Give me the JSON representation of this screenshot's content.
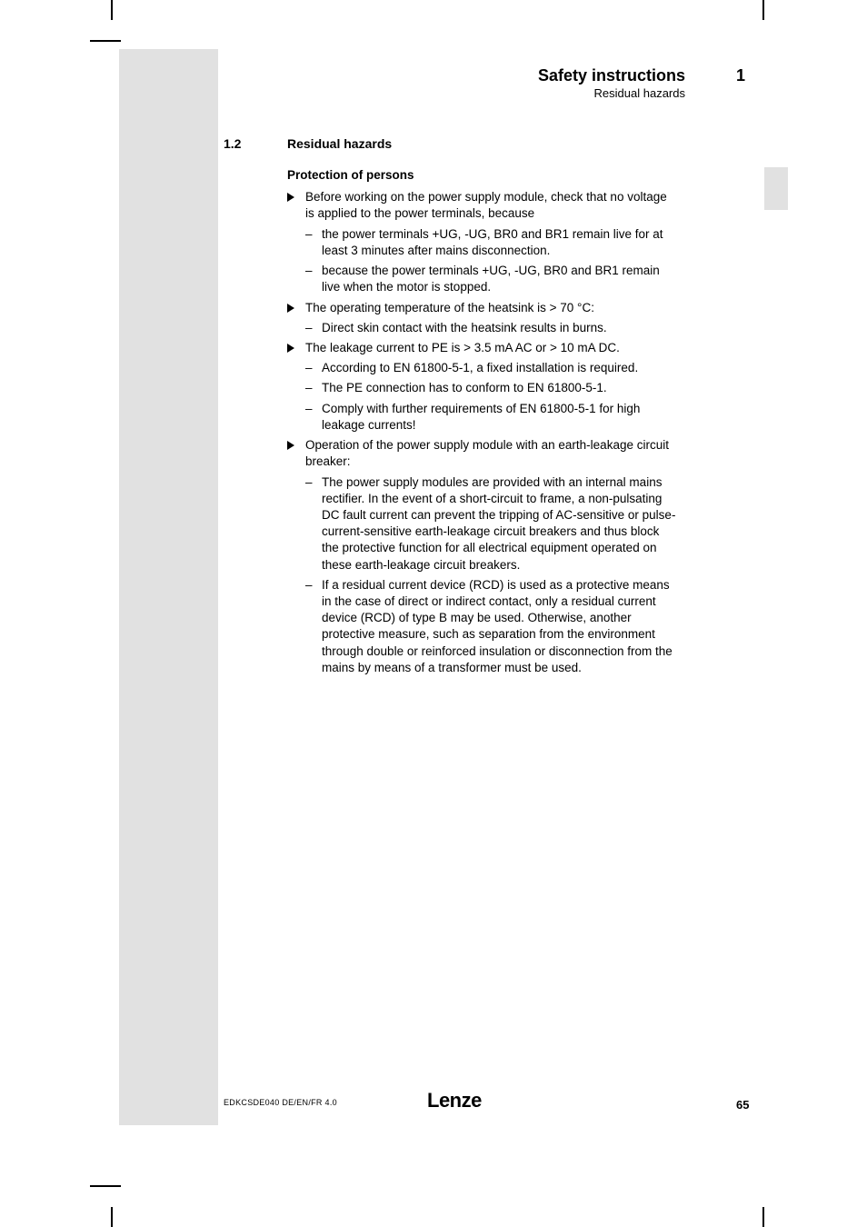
{
  "colors": {
    "page_bg": "#ffffff",
    "sidebar_grey": "#e1e1e1",
    "text": "#000000"
  },
  "typography": {
    "body_fontsize_pt": 10,
    "header_title_fontsize_pt": 13,
    "header_sub_fontsize_pt": 10,
    "section_fontsize_pt": 10.5,
    "footer_small_fontsize_pt": 7,
    "footer_logo_fontsize_pt": 16
  },
  "header": {
    "title": "Safety instructions",
    "subtitle": "Residual hazards",
    "chapter_number": "1"
  },
  "section": {
    "number": "1.2",
    "title": "Residual hazards"
  },
  "content": {
    "subheading": "Protection of persons",
    "b1_text": "Before working on the power supply module, check that no voltage is applied to the power terminals, because",
    "b1_s1": "the power terminals +UG, -UG, BR0 and BR1 remain live for at least 3 minutes after mains disconnection.",
    "b1_s2": "because the power terminals +UG, -UG, BR0 and BR1 remain live when the motor is stopped.",
    "b2_text": "The operating temperature of the heatsink is > 70 °C:",
    "b2_s1": "Direct skin contact with the heatsink results in burns.",
    "b3_text": "The leakage current to PE is > 3.5 mA AC or > 10 mA DC.",
    "b3_s1": "According to EN 61800-5-1, a fixed installation is required.",
    "b3_s2": "The PE connection has to conform to EN 61800-5-1.",
    "b3_s3": "Comply with further requirements of EN 61800-5-1 for high leakage currents!",
    "b4_text": "Operation of the power supply module with an earth-leakage circuit breaker:",
    "b4_s1": "The power supply modules are provided with an internal mains rectifier. In the event of a short-circuit to frame, a non-pulsating DC fault current can prevent the tripping of AC-sensitive or pulse-current-sensitive earth-leakage circuit breakers and thus block the protective function for all electrical equipment operated on these earth-leakage circuit breakers.",
    "b4_s2": "If a residual current device (RCD) is used as a protective means in the case of direct or indirect contact, only a residual current device (RCD) of type B may be used. Otherwise, another protective measure, such as separation from the environment through double or reinforced insulation or disconnection from the mains by means of a transformer must be used."
  },
  "footer": {
    "left": "EDKCSDE040  DE/EN/FR  4.0",
    "logo": "Lenze",
    "page_number": "65"
  }
}
